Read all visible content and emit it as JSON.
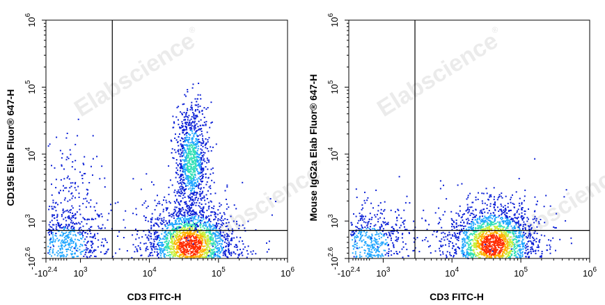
{
  "watermark": "Elabscience",
  "watermark_mark": "®",
  "chart_data": [
    {
      "type": "scatter",
      "style": "density-pseudocolor",
      "xlabel": "CD3 FITC-H",
      "ylabel": "CD195 Elab Fluor® 647-H",
      "x_scale": "biexponential",
      "y_scale": "biexponential",
      "xlim": [
        -251,
        1000000
      ],
      "ylim": [
        -398,
        1000000
      ],
      "x_ticks": [
        {
          "base": "-10",
          "exp": "2.4",
          "value": -251
        },
        {
          "base": "10",
          "exp": "3",
          "value": 1000
        },
        {
          "base": "10",
          "exp": "4",
          "value": 10000
        },
        {
          "base": "10",
          "exp": "5",
          "value": 100000
        },
        {
          "base": "10",
          "exp": "6",
          "value": 1000000
        }
      ],
      "y_ticks": [
        {
          "base": "-10",
          "exp": "2.6",
          "value": -398
        },
        {
          "base": "10",
          "exp": "3",
          "value": 1000
        },
        {
          "base": "10",
          "exp": "4",
          "value": 10000
        },
        {
          "base": "10",
          "exp": "5",
          "value": 100000
        },
        {
          "base": "10",
          "exp": "6",
          "value": 1000000
        }
      ],
      "quadrant_gate": {
        "x": 2900,
        "y": 650
      },
      "populations": [
        {
          "name": "CD3- CD195- cluster",
          "x_center": 450,
          "y_center": 120,
          "relative_density": 0.3
        },
        {
          "name": "CD3- CD195+ scatter",
          "x_center": 550,
          "y_center": 3000,
          "relative_density": 0.06
        },
        {
          "name": "CD3+ CD195- cluster",
          "x_center": 38000,
          "y_center": 110,
          "relative_density": 1.0
        },
        {
          "name": "CD3+ CD195+ population",
          "x_center": 40000,
          "y_center": 8000,
          "relative_density": 0.45
        }
      ],
      "colors": [
        "#0a1fd6",
        "#1fa6ff",
        "#34e0b6",
        "#c8f03a",
        "#ffb000",
        "#ff2a00"
      ]
    },
    {
      "type": "scatter",
      "style": "density-pseudocolor",
      "xlabel": "CD3 FITC-H",
      "ylabel": "Mouse IgG2a Elab Fluor® 647-H",
      "x_scale": "biexponential",
      "y_scale": "biexponential",
      "xlim": [
        -251,
        1000000
      ],
      "ylim": [
        -398,
        1000000
      ],
      "x_ticks": [
        {
          "base": "-10",
          "exp": "2.4",
          "value": -251
        },
        {
          "base": "10",
          "exp": "3",
          "value": 1000
        },
        {
          "base": "10",
          "exp": "4",
          "value": 10000
        },
        {
          "base": "10",
          "exp": "5",
          "value": 100000
        },
        {
          "base": "10",
          "exp": "6",
          "value": 1000000
        }
      ],
      "y_ticks": [
        {
          "base": "-10",
          "exp": "2.6",
          "value": -398
        },
        {
          "base": "10",
          "exp": "3",
          "value": 1000
        },
        {
          "base": "10",
          "exp": "4",
          "value": 10000
        },
        {
          "base": "10",
          "exp": "5",
          "value": 100000
        },
        {
          "base": "10",
          "exp": "6",
          "value": 1000000
        }
      ],
      "quadrant_gate": {
        "x": 2900,
        "y": 650
      },
      "populations": [
        {
          "name": "CD3- cluster",
          "x_center": 450,
          "y_center": 120,
          "relative_density": 0.3
        },
        {
          "name": "CD3+ cluster",
          "x_center": 38000,
          "y_center": 130,
          "relative_density": 1.0
        }
      ],
      "colors": [
        "#0a1fd6",
        "#1fa6ff",
        "#34e0b6",
        "#c8f03a",
        "#ffb000",
        "#ff2a00"
      ]
    }
  ]
}
